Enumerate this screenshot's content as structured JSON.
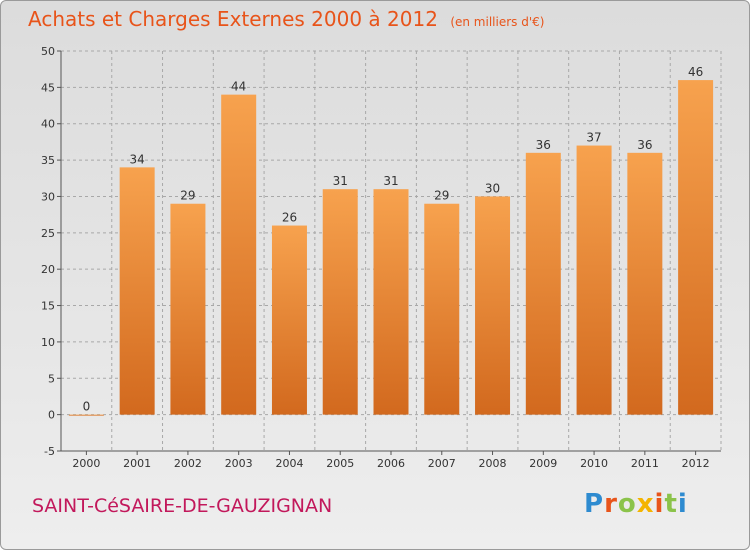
{
  "header": {
    "title": "Achats et Charges Externes 2000 à 2012",
    "unit": "(en milliers d'€)"
  },
  "footer": {
    "commune": "SAINT-CéSAIRE-DE-GAUZIGNAN",
    "logo": [
      "P",
      "r",
      "o",
      "x",
      "i",
      "t",
      "i"
    ]
  },
  "colors": {
    "bar_top": "#f7a24e",
    "bar_bottom": "#d2691e",
    "title": "#e8541a",
    "commune": "#c2185b",
    "grid": "#a8a8a8"
  },
  "chart_data": {
    "type": "bar",
    "title": "Achats et Charges Externes 2000 à 2012",
    "subtitle": "(en milliers d'€)",
    "xlabel": "",
    "ylabel": "",
    "categories": [
      "2000",
      "2001",
      "2002",
      "2003",
      "2004",
      "2005",
      "2006",
      "2007",
      "2008",
      "2009",
      "2010",
      "2011",
      "2012"
    ],
    "values": [
      0,
      34,
      29,
      44,
      26,
      31,
      31,
      29,
      30,
      36,
      37,
      36,
      46
    ],
    "ylim": [
      -5,
      50
    ],
    "yticks": [
      -5,
      0,
      5,
      10,
      15,
      20,
      25,
      30,
      35,
      40,
      45,
      50
    ],
    "grid": true,
    "legend": "none"
  }
}
